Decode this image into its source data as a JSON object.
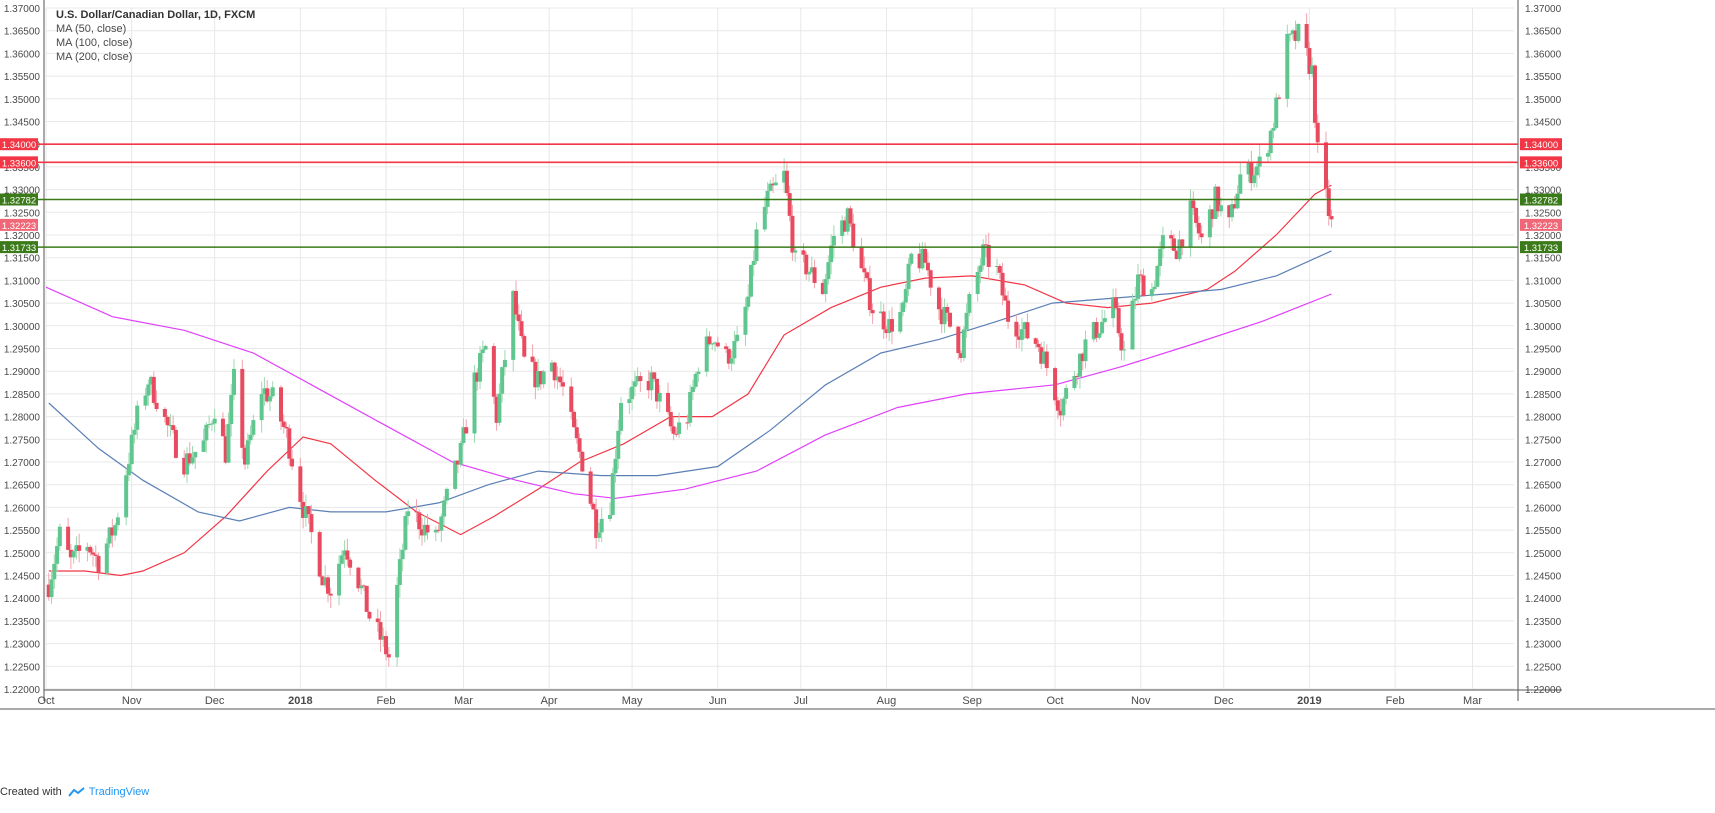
{
  "chart_data": {
    "type": "candlestick",
    "title": "U.S. Dollar/Canadian Dollar, 1D, FXCM",
    "indicators": [
      {
        "name": "MA (50, close)",
        "color": "#f23645"
      },
      {
        "name": "MA (100, close)",
        "color": "#5b7fb5"
      },
      {
        "name": "MA (200, close)",
        "color": "#e040fb"
      }
    ],
    "y_range": [
      1.22,
      1.37
    ],
    "y_ticks": [
      "1.22000",
      "1.22500",
      "1.23000",
      "1.23500",
      "1.24000",
      "1.24500",
      "1.25000",
      "1.25500",
      "1.26000",
      "1.26500",
      "1.27000",
      "1.27500",
      "1.28000",
      "1.28500",
      "1.29000",
      "1.29500",
      "1.30000",
      "1.30500",
      "1.31000",
      "1.31500",
      "1.32000",
      "1.32500",
      "1.33000",
      "1.33500",
      "1.34000",
      "1.34500",
      "1.35000",
      "1.35500",
      "1.36000",
      "1.36500",
      "1.37000"
    ],
    "x_range": [
      "2017-10-01",
      "2019-03-16"
    ],
    "x_labels": [
      {
        "label": "Oct",
        "date": "2017-10-01"
      },
      {
        "label": "Nov",
        "date": "2017-11-01"
      },
      {
        "label": "Dec",
        "date": "2017-12-01"
      },
      {
        "label": "2018",
        "date": "2018-01-01",
        "bold": true
      },
      {
        "label": "Feb",
        "date": "2018-02-01"
      },
      {
        "label": "Mar",
        "date": "2018-03-01"
      },
      {
        "label": "Apr",
        "date": "2018-04-01"
      },
      {
        "label": "May",
        "date": "2018-05-01"
      },
      {
        "label": "Jun",
        "date": "2018-06-01"
      },
      {
        "label": "Jul",
        "date": "2018-07-01"
      },
      {
        "label": "Aug",
        "date": "2018-08-01"
      },
      {
        "label": "Sep",
        "date": "2018-09-01"
      },
      {
        "label": "Oct",
        "date": "2018-10-01"
      },
      {
        "label": "Nov",
        "date": "2018-11-01"
      },
      {
        "label": "Dec",
        "date": "2018-12-01"
      },
      {
        "label": "2019",
        "date": "2019-01-01",
        "bold": true
      },
      {
        "label": "Feb",
        "date": "2019-02-01"
      },
      {
        "label": "Mar",
        "date": "2019-03-01"
      }
    ],
    "price_path": [
      [
        "2017-10-02",
        1.243
      ],
      [
        "2017-10-06",
        1.254
      ],
      [
        "2017-10-10",
        1.248
      ],
      [
        "2017-10-16",
        1.252
      ],
      [
        "2017-10-20",
        1.248
      ],
      [
        "2017-10-26",
        1.256
      ],
      [
        "2017-10-30",
        1.268
      ],
      [
        "2017-11-03",
        1.28
      ],
      [
        "2017-11-07",
        1.288
      ],
      [
        "2017-11-10",
        1.284
      ],
      [
        "2017-11-15",
        1.276
      ],
      [
        "2017-11-20",
        1.27
      ],
      [
        "2017-11-27",
        1.274
      ],
      [
        "2017-12-01",
        1.282
      ],
      [
        "2017-12-05",
        1.272
      ],
      [
        "2017-12-08",
        1.288
      ],
      [
        "2017-12-12",
        1.27
      ],
      [
        "2017-12-18",
        1.286
      ],
      [
        "2017-12-22",
        1.284
      ],
      [
        "2017-12-27",
        1.276
      ],
      [
        "2018-01-02",
        1.26
      ],
      [
        "2018-01-06",
        1.252
      ],
      [
        "2018-01-09",
        1.245
      ],
      [
        "2018-01-12",
        1.242
      ],
      [
        "2018-01-17",
        1.252
      ],
      [
        "2018-01-22",
        1.244
      ],
      [
        "2018-01-26",
        1.236
      ],
      [
        "2018-01-31",
        1.23
      ],
      [
        "2018-02-02",
        1.227
      ],
      [
        "2018-02-05",
        1.242
      ],
      [
        "2018-02-09",
        1.26
      ],
      [
        "2018-02-14",
        1.256
      ],
      [
        "2018-02-19",
        1.253
      ],
      [
        "2018-02-23",
        1.262
      ],
      [
        "2018-02-28",
        1.272
      ],
      [
        "2018-03-05",
        1.288
      ],
      [
        "2018-03-09",
        1.295
      ],
      [
        "2018-03-13",
        1.28
      ],
      [
        "2018-03-19",
        1.306
      ],
      [
        "2018-03-23",
        1.292
      ],
      [
        "2018-03-28",
        1.288
      ],
      [
        "2018-04-02",
        1.292
      ],
      [
        "2018-04-06",
        1.286
      ],
      [
        "2018-04-10",
        1.276
      ],
      [
        "2018-04-13",
        1.27
      ],
      [
        "2018-04-18",
        1.256
      ],
      [
        "2018-04-23",
        1.261
      ],
      [
        "2018-04-27",
        1.284
      ],
      [
        "2018-05-02",
        1.286
      ],
      [
        "2018-05-08",
        1.288
      ],
      [
        "2018-05-12",
        1.282
      ],
      [
        "2018-05-16",
        1.276
      ],
      [
        "2018-05-21",
        1.28
      ],
      [
        "2018-05-25",
        1.292
      ],
      [
        "2018-05-30",
        1.298
      ],
      [
        "2018-06-04",
        1.293
      ],
      [
        "2018-06-08",
        1.296
      ],
      [
        "2018-06-12",
        1.306
      ],
      [
        "2018-06-15",
        1.32
      ],
      [
        "2018-06-19",
        1.328
      ],
      [
        "2018-06-25",
        1.333
      ],
      [
        "2018-06-29",
        1.314
      ],
      [
        "2018-07-03",
        1.313
      ],
      [
        "2018-07-09",
        1.308
      ],
      [
        "2018-07-13",
        1.32
      ],
      [
        "2018-07-18",
        1.324
      ],
      [
        "2018-07-23",
        1.312
      ],
      [
        "2018-07-27",
        1.304
      ],
      [
        "2018-08-02",
        1.3
      ],
      [
        "2018-08-07",
        1.303
      ],
      [
        "2018-08-10",
        1.315
      ],
      [
        "2018-08-15",
        1.314
      ],
      [
        "2018-08-20",
        1.304
      ],
      [
        "2018-08-24",
        1.3
      ],
      [
        "2018-08-28",
        1.295
      ],
      [
        "2018-08-31",
        1.305
      ],
      [
        "2018-09-05",
        1.316
      ],
      [
        "2018-09-10",
        1.312
      ],
      [
        "2018-09-14",
        1.302
      ],
      [
        "2018-09-19",
        1.299
      ],
      [
        "2018-09-25",
        1.296
      ],
      [
        "2018-09-28",
        1.291
      ],
      [
        "2018-10-03",
        1.282
      ],
      [
        "2018-10-08",
        1.29
      ],
      [
        "2018-10-12",
        1.296
      ],
      [
        "2018-10-17",
        1.3
      ],
      [
        "2018-10-22",
        1.304
      ],
      [
        "2018-10-26",
        1.294
      ],
      [
        "2018-10-31",
        1.31
      ],
      [
        "2018-11-05",
        1.308
      ],
      [
        "2018-11-09",
        1.318
      ],
      [
        "2018-11-14",
        1.317
      ],
      [
        "2018-11-19",
        1.325
      ],
      [
        "2018-11-23",
        1.319
      ],
      [
        "2018-11-28",
        1.328
      ],
      [
        "2018-12-03",
        1.322
      ],
      [
        "2018-12-07",
        1.333
      ],
      [
        "2018-12-11",
        1.334
      ],
      [
        "2018-12-15",
        1.336
      ],
      [
        "2018-12-19",
        1.345
      ],
      [
        "2018-12-24",
        1.362
      ],
      [
        "2018-12-28",
        1.364
      ],
      [
        "2019-01-02",
        1.356
      ],
      [
        "2019-01-04",
        1.338
      ],
      [
        "2019-01-07",
        1.328
      ],
      [
        "2019-01-09",
        1.3222
      ]
    ],
    "moving_averages": [
      {
        "name": "MA (50, close)",
        "color": "#f23645",
        "points": [
          [
            "2017-10-02",
            1.246
          ],
          [
            "2017-10-15",
            1.246
          ],
          [
            "2017-10-28",
            1.245
          ],
          [
            "2017-11-05",
            1.246
          ],
          [
            "2017-11-20",
            1.25
          ],
          [
            "2017-12-05",
            1.258
          ],
          [
            "2017-12-20",
            1.268
          ],
          [
            "2018-01-02",
            1.2755
          ],
          [
            "2018-01-12",
            1.274
          ],
          [
            "2018-01-28",
            1.266
          ],
          [
            "2018-02-12",
            1.259
          ],
          [
            "2018-02-28",
            1.254
          ],
          [
            "2018-03-12",
            1.258
          ],
          [
            "2018-03-28",
            1.264
          ],
          [
            "2018-04-12",
            1.27
          ],
          [
            "2018-04-28",
            1.274
          ],
          [
            "2018-05-15",
            1.28
          ],
          [
            "2018-05-30",
            1.28
          ],
          [
            "2018-06-12",
            1.285
          ],
          [
            "2018-06-25",
            1.298
          ],
          [
            "2018-07-12",
            1.304
          ],
          [
            "2018-07-30",
            1.3085
          ],
          [
            "2018-08-15",
            1.3105
          ],
          [
            "2018-09-01",
            1.311
          ],
          [
            "2018-09-20",
            1.309
          ],
          [
            "2018-10-05",
            1.305
          ],
          [
            "2018-10-20",
            1.304
          ],
          [
            "2018-11-05",
            1.305
          ],
          [
            "2018-11-25",
            1.308
          ],
          [
            "2018-12-05",
            1.312
          ],
          [
            "2018-12-20",
            1.32
          ],
          [
            "2019-01-03",
            1.329
          ],
          [
            "2019-01-09",
            1.331
          ]
        ]
      },
      {
        "name": "MA (100, close)",
        "color": "#5b7fb5",
        "points": [
          [
            "2017-10-02",
            1.283
          ],
          [
            "2017-10-20",
            1.273
          ],
          [
            "2017-11-05",
            1.266
          ],
          [
            "2017-11-25",
            1.259
          ],
          [
            "2017-12-10",
            1.257
          ],
          [
            "2017-12-28",
            1.26
          ],
          [
            "2018-01-12",
            1.259
          ],
          [
            "2018-02-01",
            1.259
          ],
          [
            "2018-02-20",
            1.261
          ],
          [
            "2018-03-10",
            1.265
          ],
          [
            "2018-03-28",
            1.268
          ],
          [
            "2018-04-20",
            1.267
          ],
          [
            "2018-05-10",
            1.267
          ],
          [
            "2018-06-01",
            1.269
          ],
          [
            "2018-06-20",
            1.277
          ],
          [
            "2018-07-10",
            1.287
          ],
          [
            "2018-07-30",
            1.294
          ],
          [
            "2018-08-20",
            1.297
          ],
          [
            "2018-09-10",
            1.301
          ],
          [
            "2018-09-30",
            1.305
          ],
          [
            "2018-10-20",
            1.306
          ],
          [
            "2018-11-10",
            1.307
          ],
          [
            "2018-11-30",
            1.308
          ],
          [
            "2018-12-20",
            1.311
          ],
          [
            "2019-01-09",
            1.3165
          ]
        ]
      },
      {
        "name": "MA (200, close)",
        "color": "#e040fb",
        "points": [
          [
            "2017-10-01",
            1.3085
          ],
          [
            "2017-10-25",
            1.302
          ],
          [
            "2017-11-20",
            1.299
          ],
          [
            "2017-12-15",
            1.294
          ],
          [
            "2018-01-05",
            1.287
          ],
          [
            "2018-02-01",
            1.278
          ],
          [
            "2018-02-25",
            1.27
          ],
          [
            "2018-03-20",
            1.266
          ],
          [
            "2018-04-10",
            1.263
          ],
          [
            "2018-04-25",
            1.262
          ],
          [
            "2018-05-20",
            1.264
          ],
          [
            "2018-06-15",
            1.268
          ],
          [
            "2018-07-10",
            1.276
          ],
          [
            "2018-08-05",
            1.282
          ],
          [
            "2018-08-30",
            1.285
          ],
          [
            "2018-10-01",
            1.287
          ],
          [
            "2018-10-25",
            1.291
          ],
          [
            "2018-11-20",
            1.296
          ],
          [
            "2018-12-15",
            1.301
          ],
          [
            "2019-01-09",
            1.307
          ]
        ]
      }
    ],
    "horizontal_levels": [
      {
        "value": 1.34,
        "label": "1.34000",
        "color": "#f23645"
      },
      {
        "value": 1.336,
        "label": "1.33600",
        "color": "#f23645"
      },
      {
        "value": 1.32782,
        "label": "1.32782",
        "color": "#3a7a19"
      },
      {
        "value": 1.31733,
        "label": "1.31733",
        "color": "#3a7a19"
      }
    ],
    "last_price": {
      "value": 1.32223,
      "label": "1.32223",
      "color": "#f06878"
    },
    "colors": {
      "up": "#26a69a",
      "up_fill": "#5fc68f",
      "down": "#e84a5f",
      "grid": "#e8e8e8",
      "axis_text": "#4a4a4a"
    }
  },
  "footer": {
    "prefix": "Created with",
    "brand": "TradingView"
  }
}
